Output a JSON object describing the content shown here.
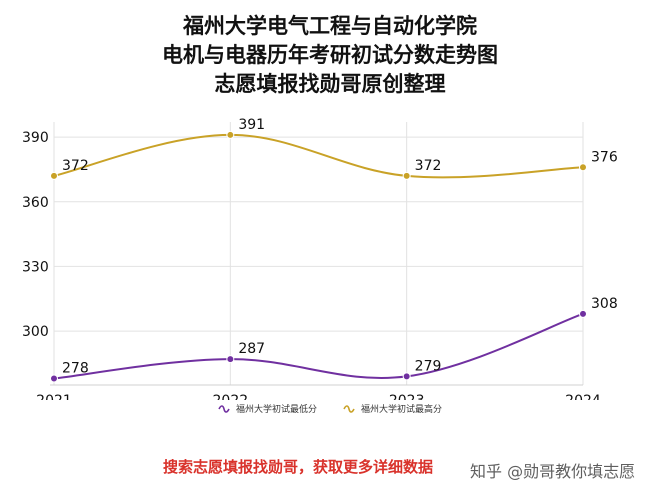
{
  "titles": {
    "line1": "福州大学电气工程与自动化学院",
    "line2": "电机与电器历年考研初试分数走势图",
    "line3": "志愿填报找勋哥原创整理"
  },
  "promo_text": "搜索志愿填报找勋哥，获取更多详细数据",
  "watermark_text": "知乎 @勋哥教你填志愿",
  "chart_data": {
    "type": "line",
    "x": [
      "2021",
      "2022",
      "2023",
      "2024"
    ],
    "series": [
      {
        "name": "福州大学初试最低分",
        "values": [
          278,
          287,
          279,
          308
        ],
        "color": "#7030a0"
      },
      {
        "name": "福州大学初试最高分",
        "values": [
          372,
          391,
          372,
          376
        ],
        "color": "#c9a227"
      }
    ],
    "yticks": [
      300,
      330,
      360,
      390
    ],
    "ylim": [
      275,
      397
    ],
    "grid": true,
    "legend_position": "bottom",
    "smooth": true
  }
}
